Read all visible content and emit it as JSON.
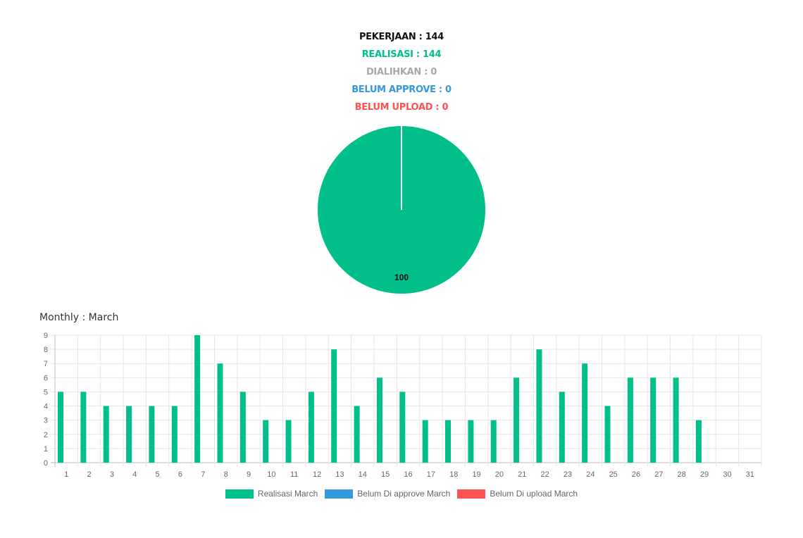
{
  "header": {
    "pekerjaan": "PEKERJAAN : 144",
    "realisasi": "REALISASI : 144",
    "dialihkan": "DIALIHKAN : 0",
    "belum_approve": "BELUM APPROVE : 0",
    "belum_upload": "BELUM UPLOAD : 0"
  },
  "pie_chart": {
    "type": "pie",
    "slices": [
      {
        "label": "Realisasi",
        "value": 100,
        "color": "#00bf8a"
      }
    ],
    "data_label": "100"
  },
  "monthly": {
    "title": "Monthly : March"
  },
  "chart_data": {
    "type": "bar",
    "categories": [
      "1",
      "2",
      "3",
      "4",
      "5",
      "6",
      "7",
      "8",
      "9",
      "10",
      "11",
      "12",
      "13",
      "14",
      "15",
      "16",
      "17",
      "18",
      "19",
      "20",
      "21",
      "22",
      "23",
      "24",
      "25",
      "26",
      "27",
      "28",
      "29",
      "30",
      "31"
    ],
    "series": [
      {
        "name": "Realisasi March",
        "color": "#00bf8a",
        "values": [
          5,
          5,
          4,
          4,
          4,
          4,
          9,
          7,
          5,
          3,
          3,
          5,
          8,
          4,
          6,
          5,
          3,
          3,
          3,
          3,
          6,
          8,
          5,
          7,
          4,
          6,
          6,
          6,
          3,
          0,
          0
        ]
      },
      {
        "name": "Belum Di approve March",
        "color": "#3498db",
        "values": [
          0,
          0,
          0,
          0,
          0,
          0,
          0,
          0,
          0,
          0,
          0,
          0,
          0,
          0,
          0,
          0,
          0,
          0,
          0,
          0,
          0,
          0,
          0,
          0,
          0,
          0,
          0,
          0,
          0,
          0,
          0
        ]
      },
      {
        "name": "Belum Di upload March",
        "color": "#ff5252",
        "values": [
          0,
          0,
          0,
          0,
          0,
          0,
          0,
          0,
          0,
          0,
          0,
          0,
          0,
          0,
          0,
          0,
          0,
          0,
          0,
          0,
          0,
          0,
          0,
          0,
          0,
          0,
          0,
          0,
          0,
          0,
          0
        ]
      }
    ],
    "yticks": [
      "0",
      "1",
      "2",
      "3",
      "4",
      "5",
      "6",
      "7",
      "8",
      "9"
    ],
    "ylim": [
      0,
      9
    ],
    "grid": true,
    "legend_position": "bottom"
  }
}
